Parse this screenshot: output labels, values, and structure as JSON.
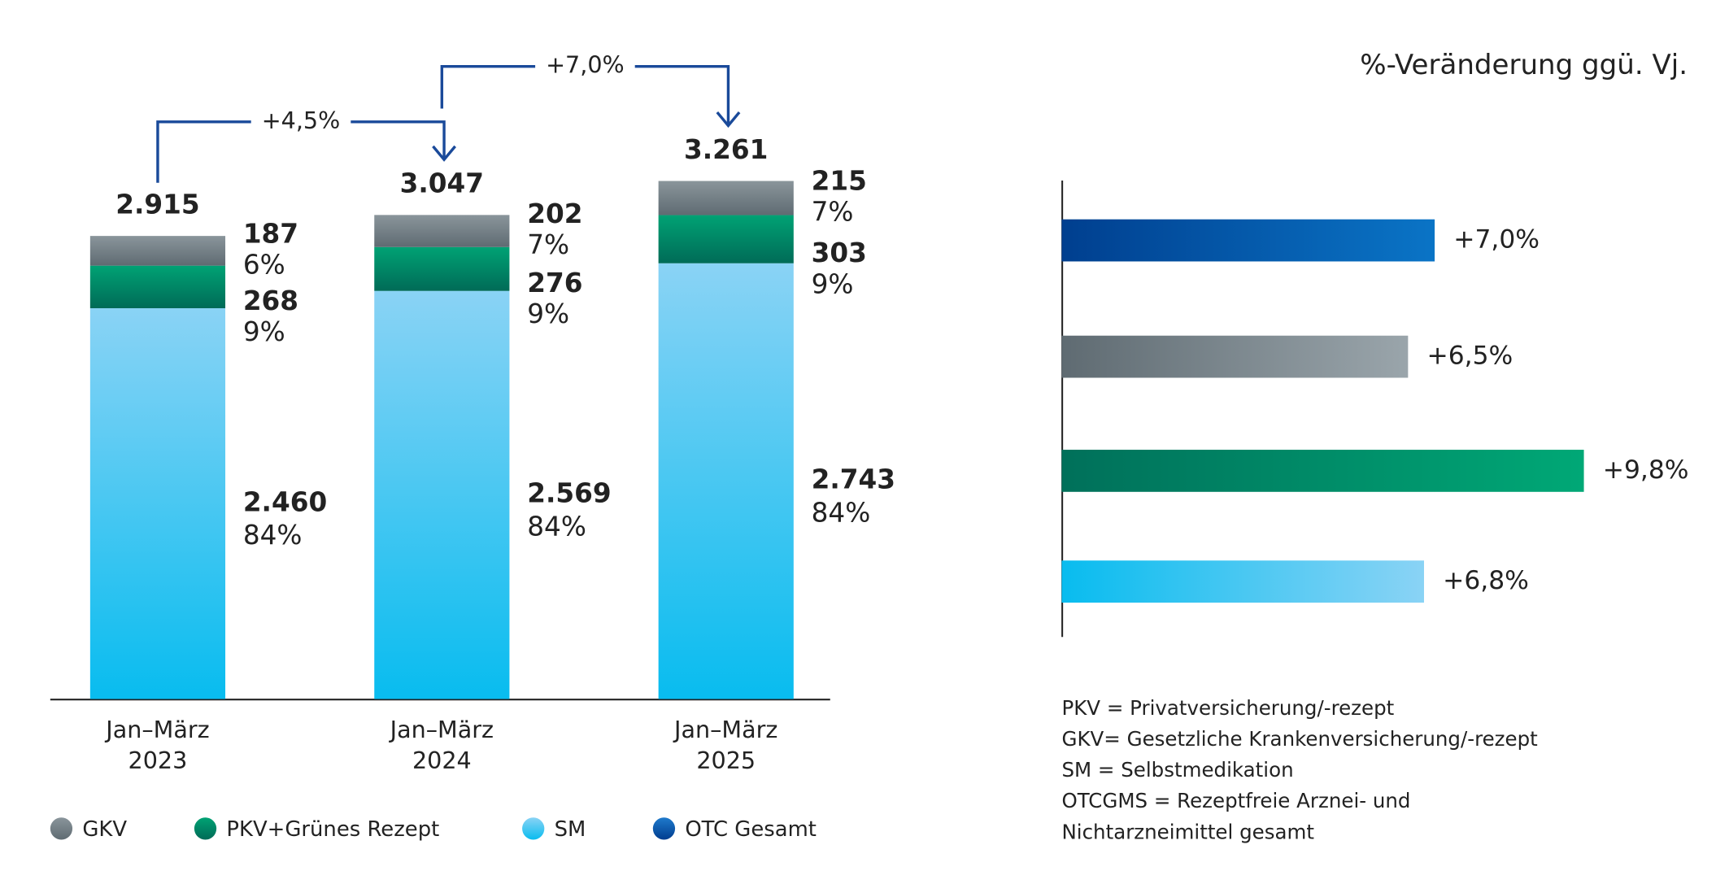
{
  "chart_data": [
    {
      "type": "stacked-bar",
      "categories": [
        [
          "Jan–März",
          "2023"
        ],
        [
          "Jan–März",
          "2024"
        ],
        [
          "Jan–März",
          "2025"
        ]
      ],
      "series": [
        {
          "name": "GKV",
          "color": [
            "#8a959b",
            "#5f6b72"
          ],
          "label_color": "#6b777e",
          "values": [
            187,
            202,
            215
          ],
          "value_labels": [
            "187",
            "202",
            "215"
          ],
          "shares": [
            6,
            7,
            7
          ],
          "share_labels": [
            "6%",
            "7%",
            "7%"
          ]
        },
        {
          "name": "PKV+Grünes Rezept",
          "color": [
            "#00a274",
            "#006b57"
          ],
          "label_color": "#00a070",
          "values": [
            268,
            276,
            303
          ],
          "value_labels": [
            "268",
            "276",
            "303"
          ],
          "shares": [
            9,
            9,
            9
          ],
          "share_labels": [
            "9%",
            "9%",
            "9%"
          ]
        },
        {
          "name": "SM",
          "color": [
            "#8ad3f5",
            "#08bcef"
          ],
          "label_color": "#2bb5ea",
          "values": [
            2460,
            2569,
            2743
          ],
          "value_labels": [
            "2.460",
            "2.569",
            "2.743"
          ],
          "shares": [
            84,
            84,
            84
          ],
          "share_labels": [
            "84%",
            "84%",
            "84%"
          ]
        }
      ],
      "total": {
        "name": "OTC Gesamt",
        "color": [
          "#1f7acc",
          "#003d8f"
        ],
        "label_color": "#0a3d8a",
        "values": [
          2915,
          3047,
          3261
        ],
        "value_labels": [
          "2.915",
          "3.047",
          "3.261"
        ]
      },
      "annotations": [
        "+4,5%",
        "+7,0%"
      ]
    },
    {
      "type": "hbar",
      "title": "%-Veränderung ggü. Vj.",
      "values": [
        7.0,
        6.5,
        9.8,
        6.8
      ],
      "value_labels": [
        "+7,0%",
        "+6,5%",
        "+9,8%",
        "+6,8%"
      ],
      "colors": [
        [
          "#003f8f",
          "#0a74c6"
        ],
        [
          "#5f6b72",
          "#9aa5ab"
        ],
        [
          "#00705a",
          "#00a876"
        ],
        [
          "#08bcef",
          "#8ad3f5"
        ]
      ],
      "notes": [
        "PKV = Privatversicherung/-rezept",
        "GKV= Gesetzliche Krankenversicherung/-rezept",
        "SM = Selbstmedikation",
        "OTCGMS = Rezeptfreie Arznei- und",
        "Nichtarzneimittel gesamt"
      ]
    }
  ]
}
